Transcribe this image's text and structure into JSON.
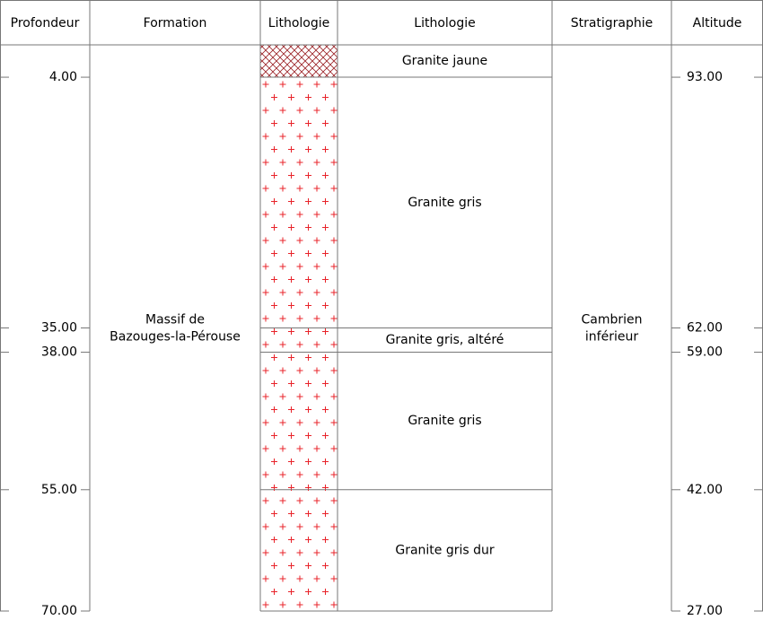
{
  "header": {
    "columns": [
      "Profondeur",
      "Formation",
      "Lithologie",
      "Lithologie",
      "Stratigraphie",
      "Altitude"
    ]
  },
  "depth_ticks": [
    {
      "value": 4,
      "label": "4.00"
    },
    {
      "value": 35,
      "label": "35.00"
    },
    {
      "value": 38,
      "label": "38.00"
    },
    {
      "value": 55,
      "label": "55.00"
    },
    {
      "value": 70,
      "label": "70.00"
    }
  ],
  "altitude_ticks": [
    {
      "value": 93,
      "label": "93.00"
    },
    {
      "value": 62,
      "label": "62.00"
    },
    {
      "value": 59,
      "label": "59.00"
    },
    {
      "value": 42,
      "label": "42.00"
    },
    {
      "value": 27,
      "label": "27.00"
    }
  ],
  "formation": {
    "lines": [
      "Massif de",
      "Bazouges-la-Pérouse"
    ]
  },
  "stratigraphy": {
    "lines": [
      "Cambrien",
      "inférieur"
    ]
  },
  "layers": [
    {
      "description": "Granite jaune",
      "pattern": "crosshatch",
      "color": "#9b2226"
    },
    {
      "description": "Granite gris",
      "pattern": "plus",
      "color": "#e8232a"
    },
    {
      "description": "Granite gris, altéré",
      "pattern": "plus",
      "color": "#e8232a"
    },
    {
      "description": "Granite gris",
      "pattern": "plus",
      "color": "#e8232a"
    },
    {
      "description": "Granite gris dur",
      "pattern": "plus",
      "color": "#e8232a"
    }
  ]
}
